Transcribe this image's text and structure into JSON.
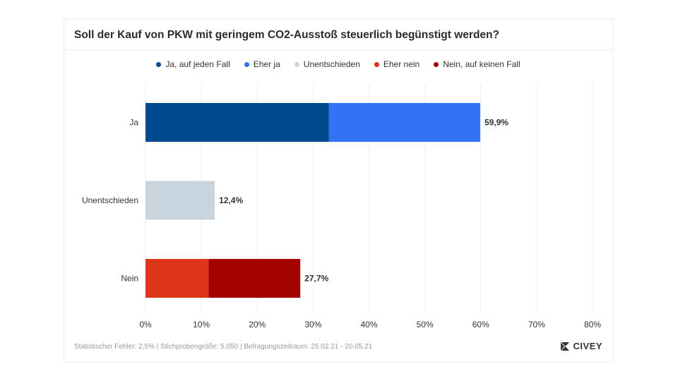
{
  "chart_data": {
    "type": "bar",
    "orientation": "horizontal",
    "stacked": true,
    "title": "Soll der Kauf von PKW mit geringem CO2-Ausstoß steuerlich begünstigt werden?",
    "categories": [
      "Ja",
      "Unentschieden",
      "Nein"
    ],
    "series": [
      {
        "name": "Ja, auf jeden Fall",
        "color": "#004a8f",
        "values": [
          32.8,
          0,
          0
        ]
      },
      {
        "name": "Eher ja",
        "color": "#3273f6",
        "values": [
          27.1,
          0,
          0
        ]
      },
      {
        "name": "Unentschieden",
        "color": "#c8d4de",
        "values": [
          0,
          12.4,
          0
        ]
      },
      {
        "name": "Eher nein",
        "color": "#dd3518",
        "values": [
          0,
          0,
          11.3
        ]
      },
      {
        "name": "Nein, auf keinen Fall",
        "color": "#a50000",
        "values": [
          0,
          0,
          16.4
        ]
      }
    ],
    "totals": [
      "59,9%",
      "12,4%",
      "27,7%"
    ],
    "xlim": [
      0,
      80
    ],
    "xticks": [
      "0%",
      "10%",
      "20%",
      "30%",
      "40%",
      "50%",
      "60%",
      "70%",
      "80%"
    ],
    "grid": true,
    "legend_position": "top"
  },
  "footer": "Statistischer Fehler: 2,5% | Stichprobengröße: 5.050 | Befragungszeitraum: 25.02.21 - 20.05.21",
  "logo_text": "CIVEY"
}
